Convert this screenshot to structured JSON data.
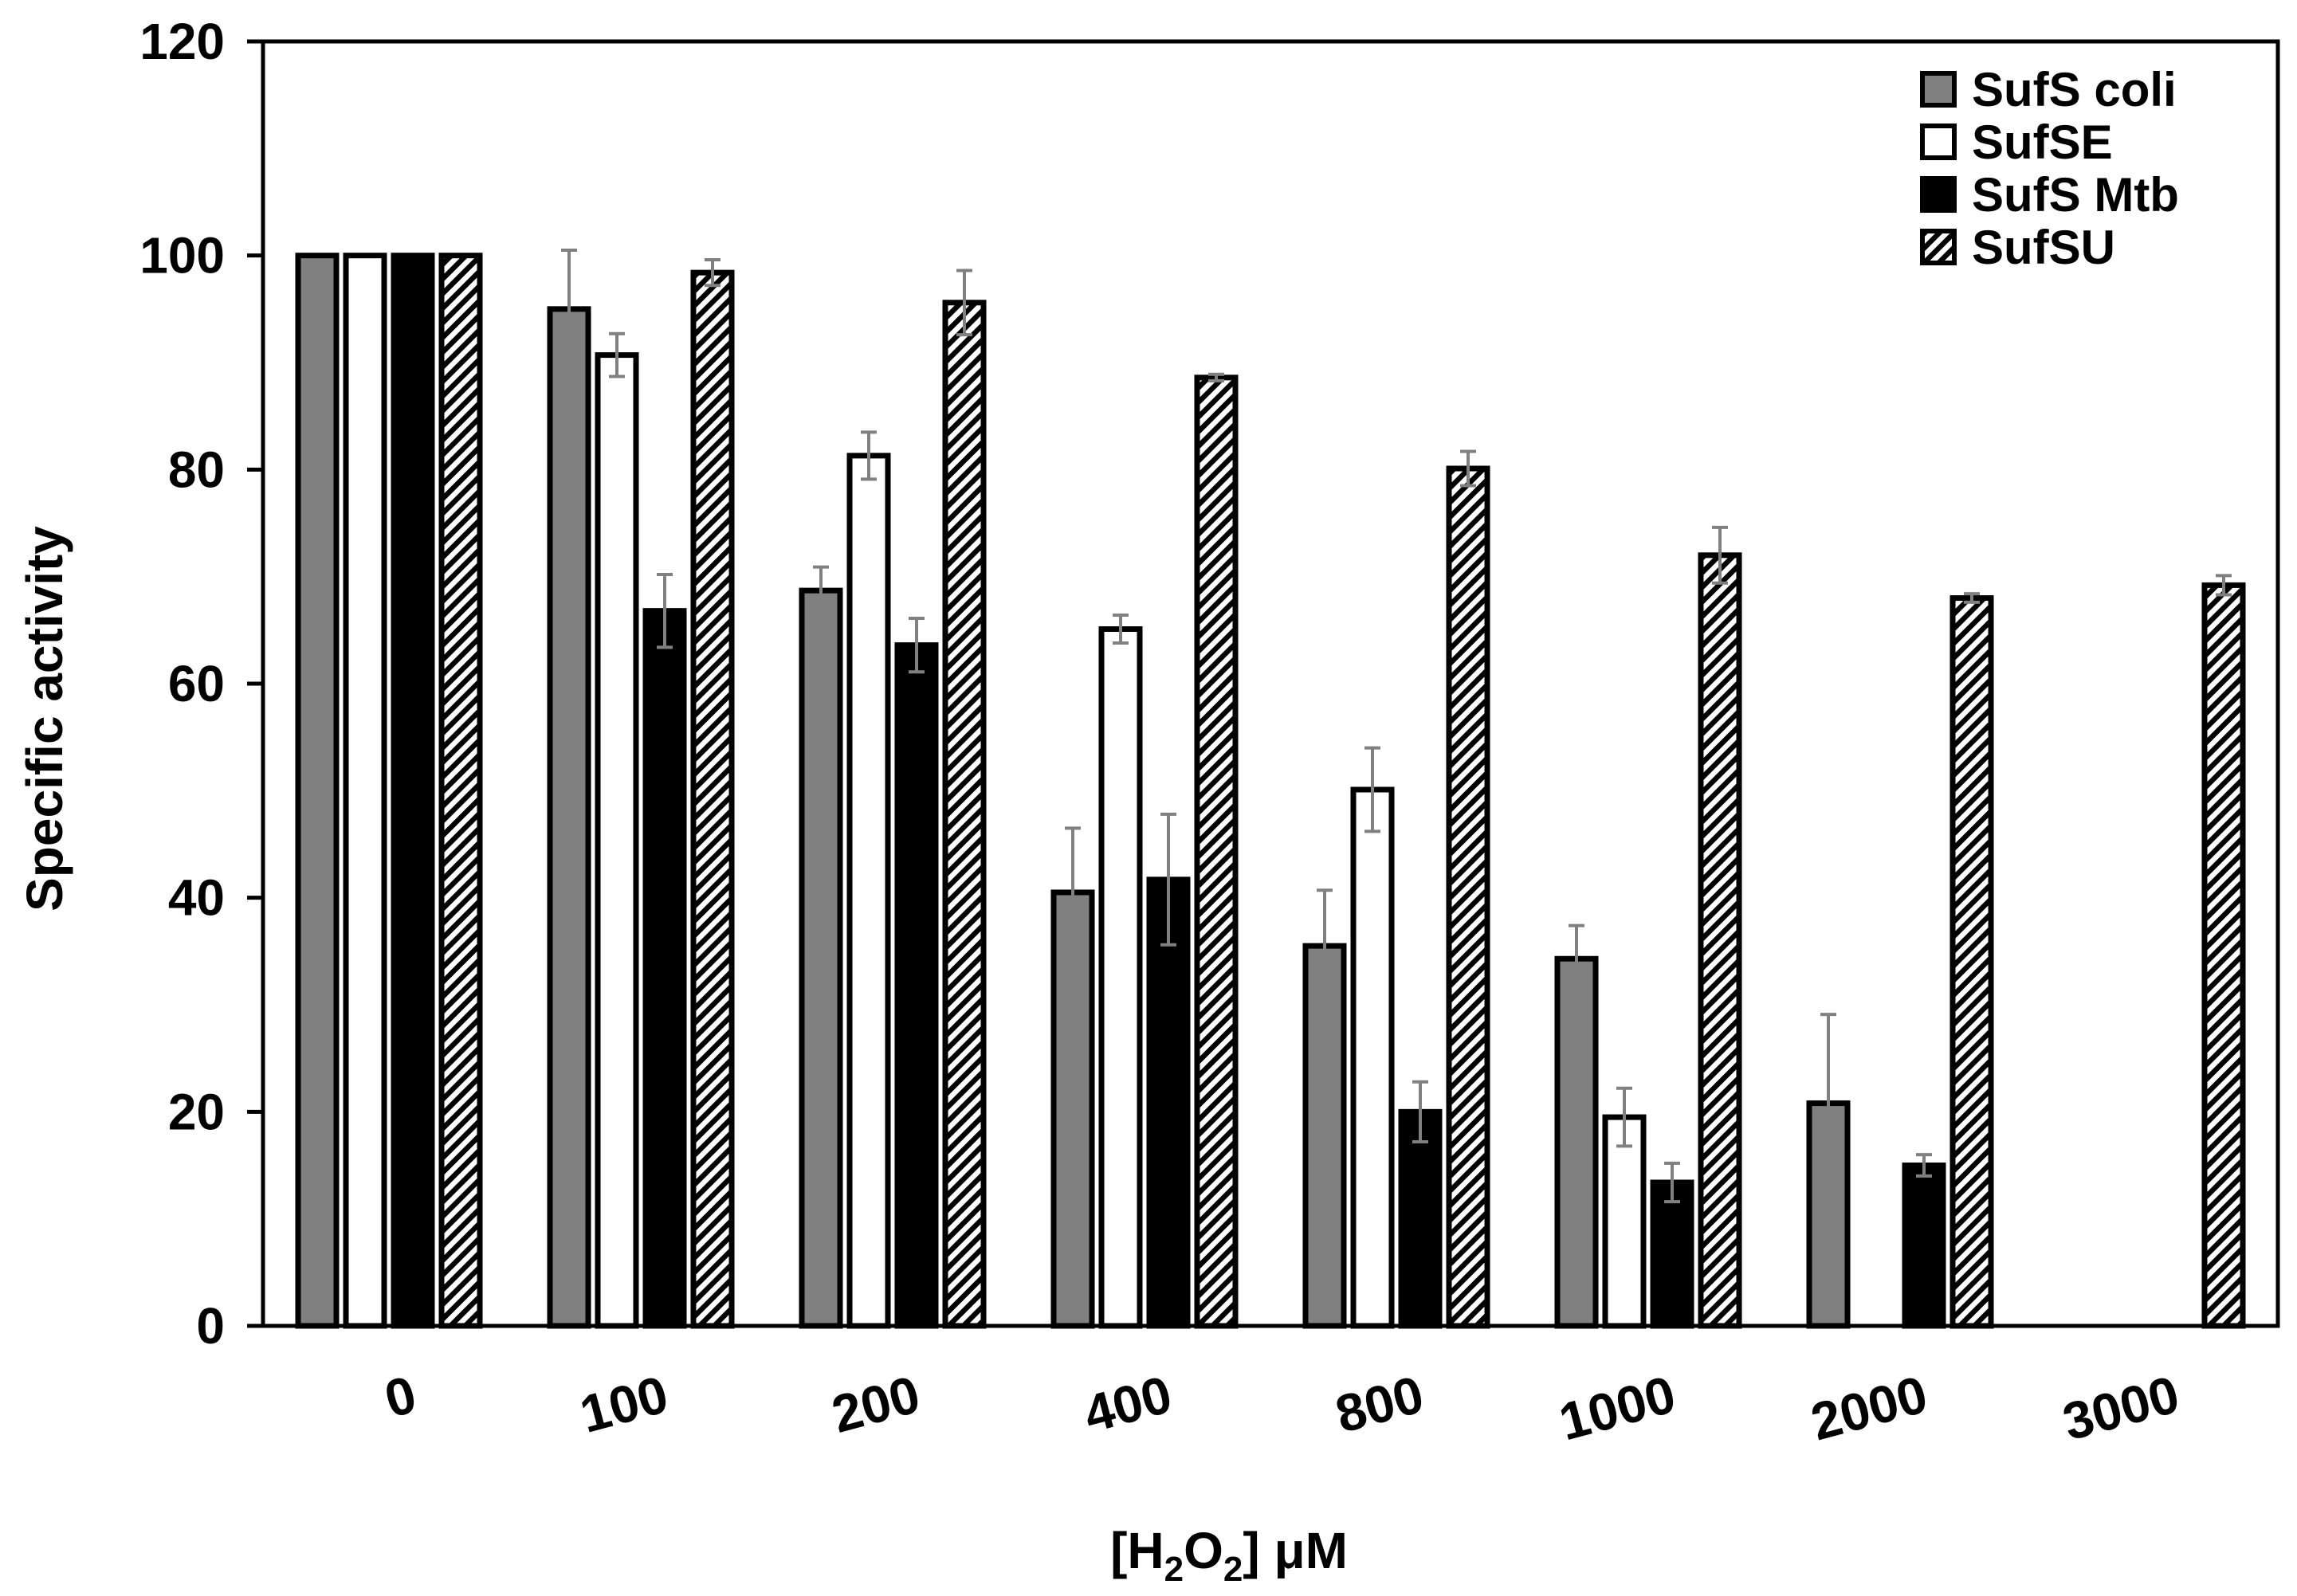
{
  "chart_data": {
    "type": "bar",
    "title": "",
    "xlabel": "[H2O2] μM",
    "ylabel": "Specific activity",
    "ylim": [
      0,
      120
    ],
    "yticks": [
      0,
      20,
      40,
      60,
      80,
      100,
      120
    ],
    "categories": [
      "0",
      "100",
      "200",
      "400",
      "800",
      "1000",
      "2000",
      "3000"
    ],
    "legend_position": "top-right",
    "series": [
      {
        "name": "SufS coli",
        "style": "gray",
        "color": "#808080",
        "values": [
          100,
          95,
          68.7,
          40.5,
          35.5,
          34.3,
          20.8,
          null
        ],
        "errors": [
          0,
          5.5,
          2.2,
          6,
          5.2,
          3.1,
          8.3,
          null
        ]
      },
      {
        "name": "SufSE",
        "style": "white",
        "color": "#ffffff",
        "values": [
          100,
          90.7,
          81.3,
          65.1,
          50.1,
          19.5,
          null,
          null
        ],
        "errors": [
          0,
          2,
          2.2,
          1.3,
          3.9,
          2.7,
          null,
          null
        ]
      },
      {
        "name": "SufS Mtb",
        "style": "black",
        "color": "#000000",
        "values": [
          100,
          66.8,
          63.6,
          41.7,
          20,
          13.4,
          15,
          null
        ],
        "errors": [
          0,
          3.4,
          2.5,
          6.1,
          2.8,
          1.8,
          1,
          null
        ]
      },
      {
        "name": "SufSU",
        "style": "hatched",
        "color": "#000000",
        "values": [
          100,
          98.4,
          95.6,
          88.6,
          80.1,
          72,
          68,
          69.2
        ],
        "errors": [
          0,
          1.2,
          3,
          0.3,
          1.6,
          2.6,
          0.4,
          0.9
        ]
      }
    ]
  }
}
